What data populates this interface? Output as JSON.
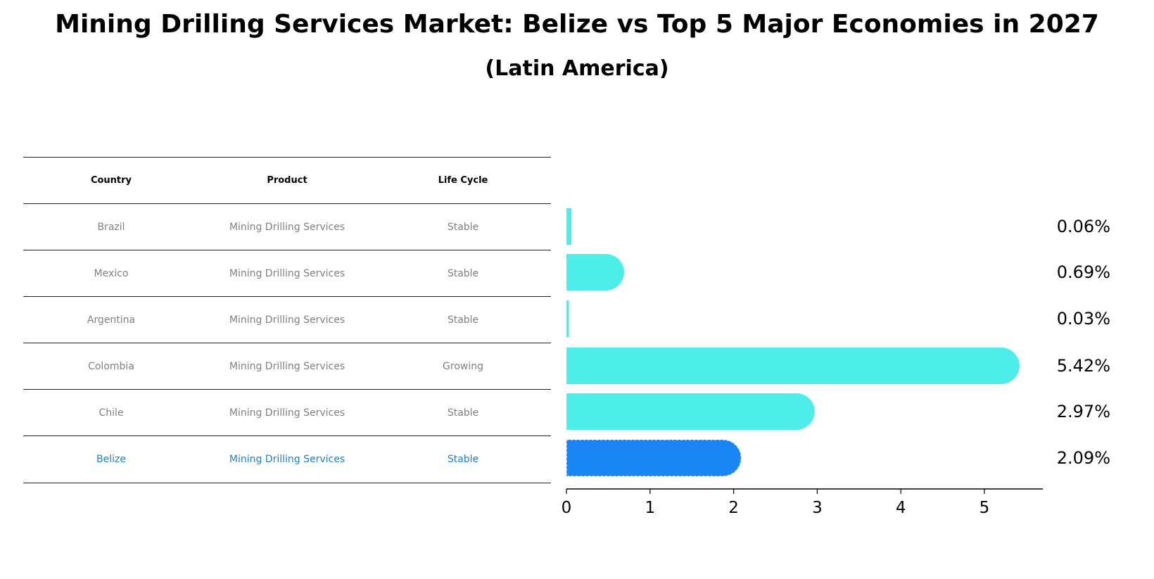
{
  "title": "Mining Drilling Services Market: Belize vs Top 5 Major Economies in 2027",
  "subtitle": "(Latin America)",
  "table": {
    "headers": [
      "Country",
      "Product",
      "Life Cycle"
    ],
    "rows": [
      {
        "country": "Brazil",
        "product": "Mining Drilling Services",
        "life_cycle": "Stable"
      },
      {
        "country": "Mexico",
        "product": "Mining Drilling Services",
        "life_cycle": "Stable"
      },
      {
        "country": "Argentina",
        "product": "Mining Drilling Services",
        "life_cycle": "Stable"
      },
      {
        "country": "Colombia",
        "product": "Mining Drilling Services",
        "life_cycle": "Growing"
      },
      {
        "country": "Chile",
        "product": "Mining Drilling Services",
        "life_cycle": "Stable"
      },
      {
        "country": "Belize",
        "product": "Mining Drilling Services",
        "life_cycle": "Stable"
      }
    ]
  },
  "colors": {
    "bar": "#4deeea",
    "highlight_bar": "#1a86f5",
    "highlight_text": "#1f7fc7",
    "text_muted": "#808080"
  },
  "chart_data": {
    "type": "bar",
    "orientation": "horizontal",
    "categories": [
      "Brazil",
      "Mexico",
      "Argentina",
      "Colombia",
      "Chile",
      "Belize"
    ],
    "values": [
      0.06,
      0.69,
      0.03,
      5.42,
      2.97,
      2.09
    ],
    "value_labels": [
      "0.06%",
      "0.69%",
      "0.03%",
      "5.42%",
      "2.97%",
      "2.09%"
    ],
    "highlight": "Belize",
    "xlim": [
      0,
      5.7
    ],
    "xticks": [
      0,
      1,
      2,
      3,
      4,
      5
    ],
    "xtick_labels": [
      "0",
      "1",
      "2",
      "3",
      "4",
      "5"
    ],
    "grid": false
  }
}
